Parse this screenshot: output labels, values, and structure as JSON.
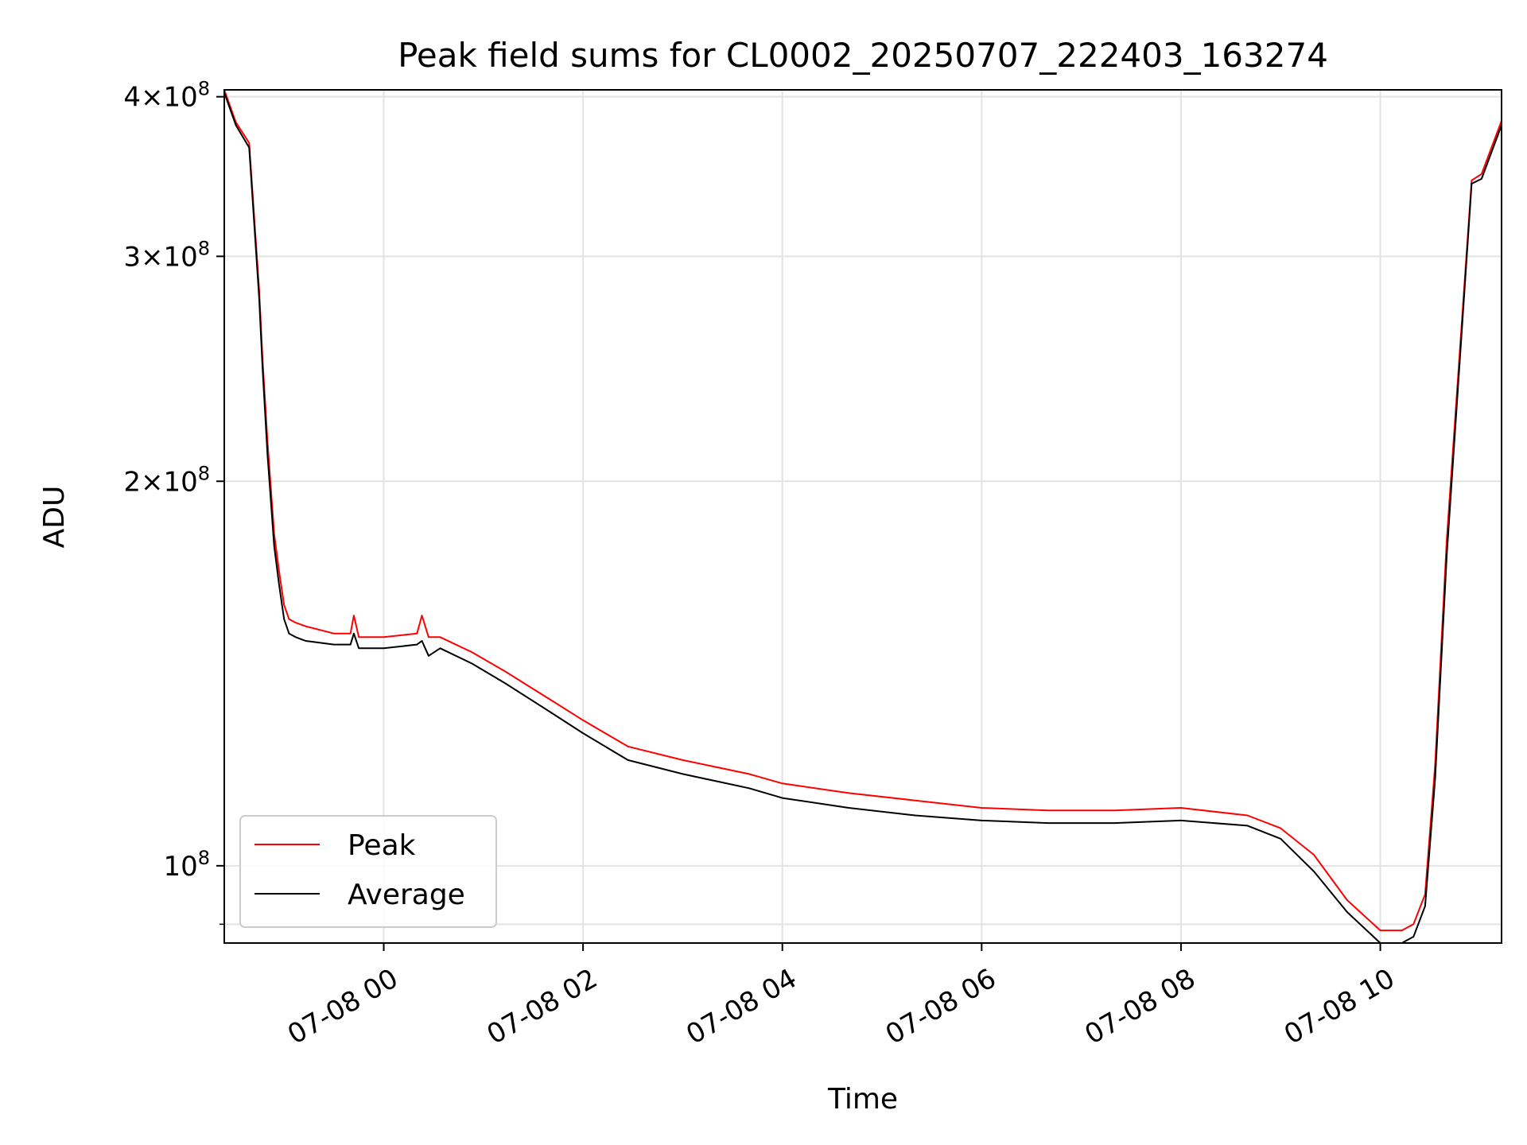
{
  "chart_data": {
    "type": "line",
    "title": "Peak field sums for CL0002_20250707_222403_163274",
    "xlabel": "Time",
    "ylabel": "ADU",
    "yscale": "log",
    "grid": true,
    "legend_position": "lower-left",
    "xlim": [
      "2025-07-07 22:24",
      "2025-07-08 11:13"
    ],
    "ylim": [
      87000000,
      405000000
    ],
    "x_ticks": [
      "2025-07-08 00:00",
      "2025-07-08 02:00",
      "2025-07-08 04:00",
      "2025-07-08 06:00",
      "2025-07-08 08:00",
      "2025-07-08 10:00"
    ],
    "x_tick_labels": [
      "07-08 00",
      "07-08 02",
      "07-08 04",
      "07-08 06",
      "07-08 08",
      "07-08 10"
    ],
    "y_ticks": [
      {
        "value": 400000000,
        "base": "4",
        "exp": "8"
      },
      {
        "value": 300000000,
        "base": "3",
        "exp": "8"
      },
      {
        "value": 200000000,
        "base": "2",
        "exp": "8"
      },
      {
        "value": 100000000,
        "base": "10",
        "exp": "8"
      }
    ],
    "series": [
      {
        "name": "Peak",
        "color": "#ff0000",
        "x": [
          "2025-07-07 22:24",
          "2025-07-07 22:31",
          "2025-07-07 22:39",
          "2025-07-07 22:45",
          "2025-07-07 22:47",
          "2025-07-07 22:50",
          "2025-07-07 22:54",
          "2025-07-07 22:57",
          "2025-07-07 23:00",
          "2025-07-07 23:03",
          "2025-07-07 23:07",
          "2025-07-07 23:13",
          "2025-07-07 23:30",
          "2025-07-07 23:40",
          "2025-07-07 23:42",
          "2025-07-07 23:45",
          "2025-07-08 00:00",
          "2025-07-08 00:20",
          "2025-07-08 00:23",
          "2025-07-08 00:27",
          "2025-07-08 00:34",
          "2025-07-08 00:53",
          "2025-07-08 01:13",
          "2025-07-08 01:40",
          "2025-07-08 02:00",
          "2025-07-08 02:27",
          "2025-07-08 03:00",
          "2025-07-08 03:40",
          "2025-07-08 04:00",
          "2025-07-08 04:40",
          "2025-07-08 05:20",
          "2025-07-08 06:00",
          "2025-07-08 06:40",
          "2025-07-08 07:20",
          "2025-07-08 08:00",
          "2025-07-08 08:40",
          "2025-07-08 09:00",
          "2025-07-08 09:20",
          "2025-07-08 09:40",
          "2025-07-08 10:00",
          "2025-07-08 10:13",
          "2025-07-08 10:20",
          "2025-07-08 10:27",
          "2025-07-08 10:33",
          "2025-07-08 10:40",
          "2025-07-08 10:55",
          "2025-07-08 11:01",
          "2025-07-08 11:13"
        ],
        "values": [
          405000000,
          382000000,
          368000000,
          282000000,
          250000000,
          215000000,
          182000000,
          170000000,
          160000000,
          156000000,
          155000000,
          154000000,
          152000000,
          152000000,
          157000000,
          151000000,
          151000000,
          152000000,
          157000000,
          151000000,
          151000000,
          147000000,
          142000000,
          135000000,
          130000000,
          124000000,
          121000000,
          118000000,
          116000000,
          114000000,
          112500000,
          111000000,
          110500000,
          110500000,
          111000000,
          109500000,
          107000000,
          102000000,
          94000000,
          89000000,
          89000000,
          90000000,
          95000000,
          120000000,
          180000000,
          344000000,
          348000000,
          383000000
        ]
      },
      {
        "name": "Average",
        "color": "#000000",
        "x": [
          "2025-07-07 22:24",
          "2025-07-07 22:31",
          "2025-07-07 22:39",
          "2025-07-07 22:45",
          "2025-07-07 22:47",
          "2025-07-07 22:50",
          "2025-07-07 22:54",
          "2025-07-07 22:57",
          "2025-07-07 23:00",
          "2025-07-07 23:03",
          "2025-07-07 23:07",
          "2025-07-07 23:13",
          "2025-07-07 23:30",
          "2025-07-07 23:40",
          "2025-07-07 23:42",
          "2025-07-07 23:45",
          "2025-07-08 00:00",
          "2025-07-08 00:20",
          "2025-07-08 00:23",
          "2025-07-08 00:27",
          "2025-07-08 00:34",
          "2025-07-08 00:53",
          "2025-07-08 01:13",
          "2025-07-08 01:40",
          "2025-07-08 02:00",
          "2025-07-08 02:27",
          "2025-07-08 03:00",
          "2025-07-08 03:40",
          "2025-07-08 04:00",
          "2025-07-08 04:40",
          "2025-07-08 05:20",
          "2025-07-08 06:00",
          "2025-07-08 06:40",
          "2025-07-08 07:20",
          "2025-07-08 08:00",
          "2025-07-08 08:40",
          "2025-07-08 09:00",
          "2025-07-08 09:20",
          "2025-07-08 09:40",
          "2025-07-08 10:00",
          "2025-07-08 10:13",
          "2025-07-08 10:20",
          "2025-07-08 10:27",
          "2025-07-08 10:33",
          "2025-07-08 10:40",
          "2025-07-08 10:55",
          "2025-07-08 11:01",
          "2025-07-08 11:13"
        ],
        "values": [
          403000000,
          380000000,
          365000000,
          278000000,
          246000000,
          210000000,
          178000000,
          166000000,
          156000000,
          152000000,
          151000000,
          150000000,
          149000000,
          149000000,
          152000000,
          148000000,
          148000000,
          149000000,
          150000000,
          146000000,
          148000000,
          144000000,
          139000000,
          132000000,
          127000000,
          121000000,
          118000000,
          115000000,
          113000000,
          111000000,
          109500000,
          108500000,
          108000000,
          108000000,
          108500000,
          107500000,
          105000000,
          99000000,
          92000000,
          87000000,
          87000000,
          88000000,
          93000000,
          117000000,
          175000000,
          342000000,
          345000000,
          380000000
        ]
      }
    ]
  }
}
